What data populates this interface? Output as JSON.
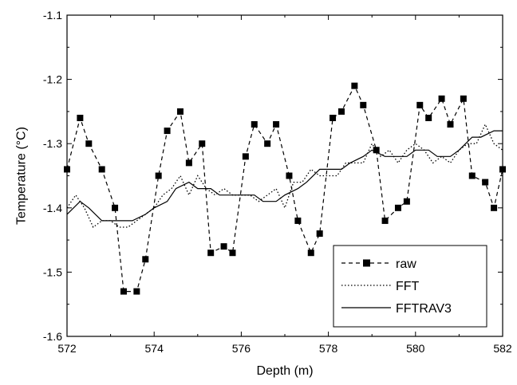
{
  "chart_data": {
    "type": "line",
    "xlabel": "Depth (m)",
    "ylabel": "Temperature (°C)",
    "xlim": [
      572,
      582
    ],
    "ylim": [
      -1.6,
      -1.1
    ],
    "x_ticks": [
      572,
      574,
      576,
      578,
      580,
      582
    ],
    "x_tick_labels": [
      "572",
      "574",
      "576",
      "578",
      "580",
      "582"
    ],
    "y_ticks": [
      -1.6,
      -1.5,
      -1.4,
      -1.3,
      -1.2,
      -1.1
    ],
    "y_tick_labels": [
      "-1.6",
      "-1.5",
      "-1.4",
      "-1.3",
      "-1.2",
      "-1.1"
    ],
    "grid": false,
    "legend_position": "bottom-right",
    "series": [
      {
        "name": "raw",
        "style": "dashed-square-markers",
        "color": "#000000",
        "x": [
          572.0,
          572.3,
          572.5,
          572.8,
          573.1,
          573.3,
          573.6,
          573.8,
          574.1,
          574.3,
          574.6,
          574.8,
          575.1,
          575.3,
          575.6,
          575.8,
          576.1,
          576.3,
          576.6,
          576.8,
          577.1,
          577.3,
          577.6,
          577.8,
          578.1,
          578.3,
          578.6,
          578.8,
          579.1,
          579.3,
          579.6,
          579.8,
          580.1,
          580.3,
          580.6,
          580.8,
          581.1,
          581.3,
          581.6,
          581.8,
          582.0
        ],
        "y": [
          -1.34,
          -1.26,
          -1.3,
          -1.34,
          -1.4,
          -1.53,
          -1.53,
          -1.48,
          -1.35,
          -1.28,
          -1.25,
          -1.33,
          -1.3,
          -1.47,
          -1.46,
          -1.47,
          -1.32,
          -1.27,
          -1.3,
          -1.27,
          -1.35,
          -1.42,
          -1.47,
          -1.44,
          -1.26,
          -1.25,
          -1.21,
          -1.24,
          -1.31,
          -1.42,
          -1.4,
          -1.39,
          -1.24,
          -1.26,
          -1.23,
          -1.27,
          -1.23,
          -1.35,
          -1.36,
          -1.4,
          -1.34
        ]
      },
      {
        "name": "FFT",
        "style": "dotted",
        "color": "#000000",
        "x": [
          572.0,
          572.2,
          572.4,
          572.6,
          572.8,
          573.0,
          573.2,
          573.4,
          573.6,
          573.8,
          574.0,
          574.2,
          574.4,
          574.6,
          574.8,
          575.0,
          575.2,
          575.4,
          575.6,
          575.8,
          576.0,
          576.2,
          576.4,
          576.6,
          576.8,
          577.0,
          577.2,
          577.4,
          577.6,
          577.8,
          578.0,
          578.2,
          578.4,
          578.6,
          578.8,
          579.0,
          579.2,
          579.4,
          579.6,
          579.8,
          580.0,
          580.2,
          580.4,
          580.6,
          580.8,
          581.0,
          581.2,
          581.4,
          581.6,
          581.8,
          582.0
        ],
        "y": [
          -1.4,
          -1.38,
          -1.4,
          -1.43,
          -1.42,
          -1.42,
          -1.43,
          -1.43,
          -1.42,
          -1.41,
          -1.4,
          -1.38,
          -1.37,
          -1.35,
          -1.38,
          -1.35,
          -1.37,
          -1.38,
          -1.37,
          -1.38,
          -1.38,
          -1.38,
          -1.39,
          -1.38,
          -1.37,
          -1.4,
          -1.36,
          -1.36,
          -1.34,
          -1.35,
          -1.35,
          -1.35,
          -1.33,
          -1.33,
          -1.33,
          -1.3,
          -1.32,
          -1.31,
          -1.33,
          -1.31,
          -1.3,
          -1.31,
          -1.33,
          -1.32,
          -1.33,
          -1.31,
          -1.3,
          -1.3,
          -1.27,
          -1.3,
          -1.31
        ]
      },
      {
        "name": "FFTRAV3",
        "style": "solid",
        "color": "#000000",
        "x": [
          572.0,
          572.3,
          572.5,
          572.8,
          573.0,
          573.3,
          573.5,
          573.8,
          574.0,
          574.3,
          574.5,
          574.8,
          575.0,
          575.3,
          575.5,
          575.8,
          576.0,
          576.3,
          576.5,
          576.8,
          577.0,
          577.3,
          577.5,
          577.8,
          578.0,
          578.3,
          578.5,
          578.8,
          579.0,
          579.3,
          579.5,
          579.8,
          580.0,
          580.3,
          580.5,
          580.8,
          581.0,
          581.3,
          581.5,
          581.8,
          582.0
        ],
        "y": [
          -1.41,
          -1.39,
          -1.4,
          -1.42,
          -1.42,
          -1.42,
          -1.42,
          -1.41,
          -1.4,
          -1.39,
          -1.37,
          -1.36,
          -1.37,
          -1.37,
          -1.38,
          -1.38,
          -1.38,
          -1.38,
          -1.39,
          -1.39,
          -1.38,
          -1.37,
          -1.36,
          -1.34,
          -1.34,
          -1.34,
          -1.33,
          -1.32,
          -1.31,
          -1.32,
          -1.32,
          -1.32,
          -1.31,
          -1.31,
          -1.32,
          -1.32,
          -1.31,
          -1.29,
          -1.29,
          -1.28,
          -1.28
        ]
      }
    ]
  }
}
